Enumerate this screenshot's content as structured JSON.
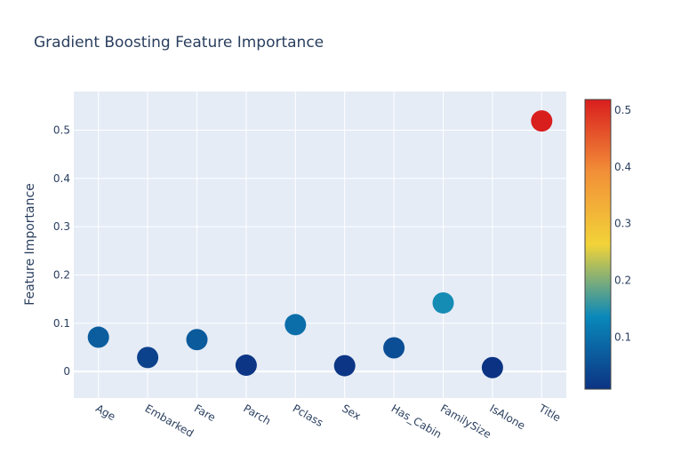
{
  "chart_data": {
    "type": "scatter",
    "title": "Gradient Boosting Feature Importance",
    "xlabel": "",
    "ylabel": "Feature Importance",
    "categories": [
      "Age",
      "Embarked",
      "Fare",
      "Parch",
      "Pclass",
      "Sex",
      "Has_Cabin",
      "FamilySize",
      "IsAlone",
      "Title"
    ],
    "values": [
      0.071,
      0.029,
      0.066,
      0.013,
      0.097,
      0.012,
      0.049,
      0.142,
      0.008,
      0.519
    ],
    "ylim": [
      -0.055,
      0.58
    ],
    "yticks": [
      0,
      0.1,
      0.2,
      0.3,
      0.4,
      0.5
    ],
    "ytick_labels": [
      "0",
      "0.1",
      "0.2",
      "0.3",
      "0.4",
      "0.5"
    ],
    "grid": true,
    "plot_background": "#e5ecf6",
    "colorscale": {
      "name": "Portland",
      "range": [
        0.008,
        0.519
      ],
      "ticks": [
        0.1,
        0.2,
        0.3,
        0.4,
        0.5
      ],
      "tick_labels": [
        "0.1",
        "0.2",
        "0.3",
        "0.4",
        "0.5"
      ],
      "stops": [
        [
          0,
          "#0c3383"
        ],
        [
          0.25,
          "#0a88ba"
        ],
        [
          0.5,
          "#f2d338"
        ],
        [
          0.75,
          "#f28f38"
        ],
        [
          1,
          "#d91e1e"
        ]
      ]
    }
  }
}
